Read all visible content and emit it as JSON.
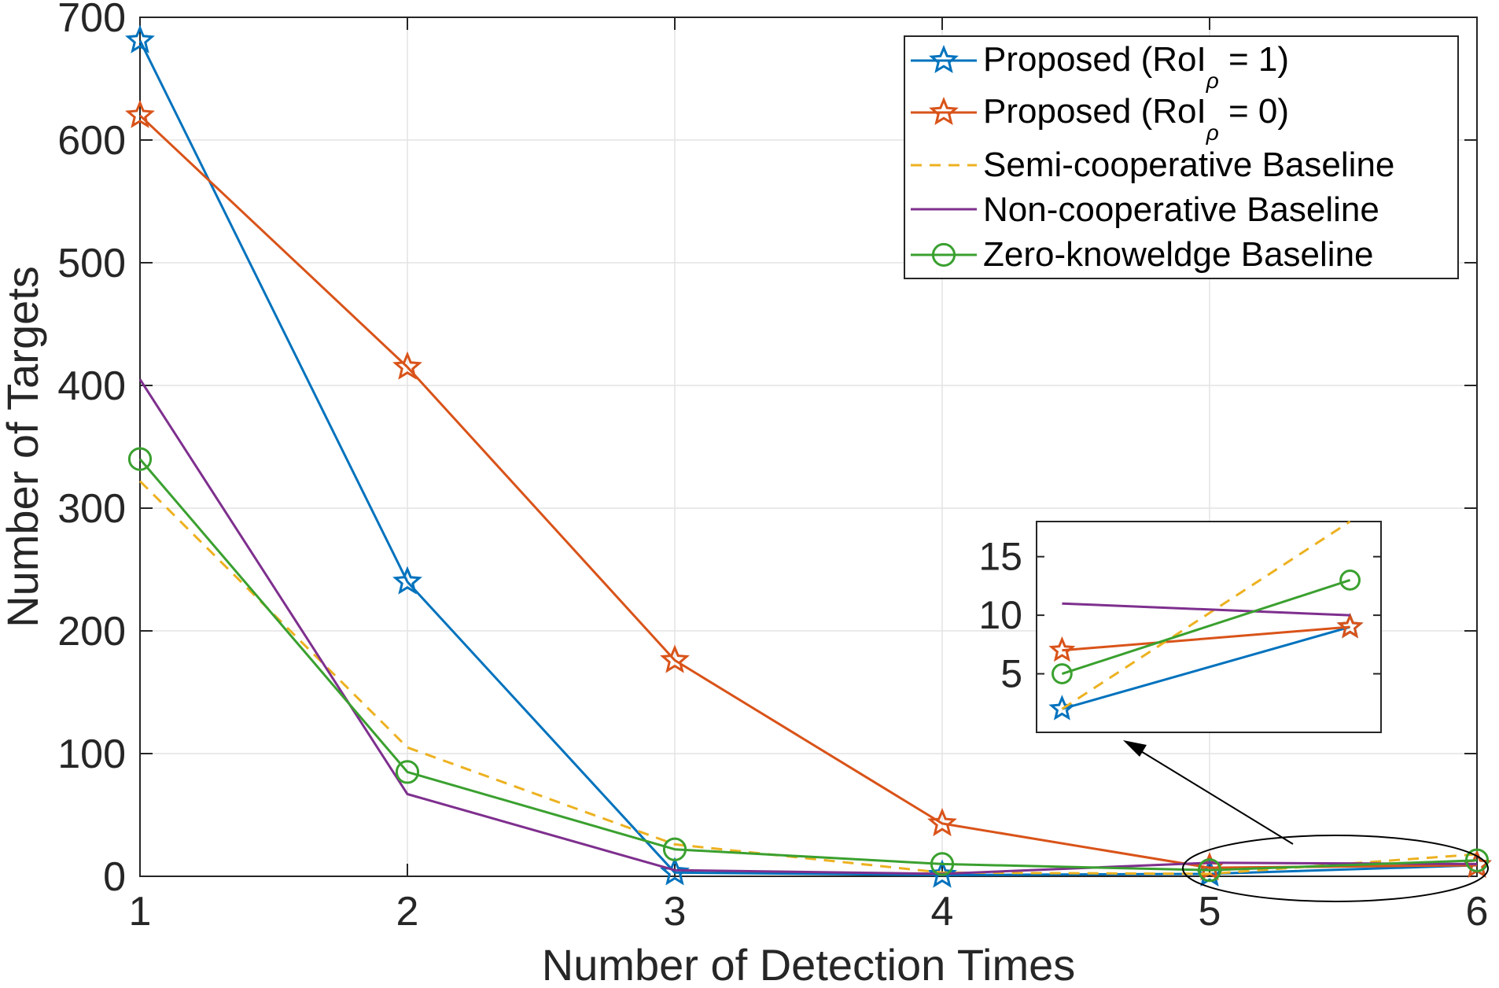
{
  "chart_data": {
    "type": "line",
    "title": "",
    "xlabel": "Number of Detection Times",
    "ylabel": "Number of Targets",
    "xlim": [
      1,
      6
    ],
    "ylim": [
      0,
      700
    ],
    "xticks": [
      "1",
      "2",
      "3",
      "4",
      "5",
      "6"
    ],
    "yticks": [
      "0",
      "100",
      "200",
      "300",
      "400",
      "500",
      "600",
      "700"
    ],
    "grid": true,
    "legend_position": "top-right",
    "x": [
      1,
      2,
      3,
      4,
      5,
      6
    ],
    "series": [
      {
        "name": "Proposed (RoI = 1)",
        "name_main": "Proposed (RoI",
        "name_sub": "ρ",
        "name_tail": " = 1)",
        "color": "#0072BD",
        "style": "solid",
        "marker": "star",
        "values": [
          681,
          240,
          3,
          1,
          2,
          9
        ]
      },
      {
        "name": "Proposed (RoI = 0)",
        "name_main": "Proposed (RoI",
        "name_sub": "ρ",
        "name_tail": " = 0)",
        "color": "#D95319",
        "style": "solid",
        "marker": "star",
        "values": [
          620,
          415,
          176,
          43,
          7,
          9
        ]
      },
      {
        "name": "Semi-cooperative Baseline",
        "color": "#EDB120",
        "style": "dashed",
        "marker": "none",
        "values": [
          322,
          105,
          26,
          3,
          2,
          18
        ]
      },
      {
        "name": "Non-cooperative Baseline",
        "color": "#7E2F8E",
        "style": "solid",
        "marker": "none",
        "values": [
          405,
          67,
          5,
          2,
          11,
          10
        ]
      },
      {
        "name": "Zero-knoweldge Baseline",
        "color": "#3AA02F",
        "style": "solid",
        "marker": "circle",
        "values": [
          340,
          85,
          22,
          10,
          5,
          13
        ]
      }
    ],
    "inset": {
      "x_range": [
        5,
        6
      ],
      "ylim": [
        0,
        18
      ],
      "yticks": [
        "5",
        "10",
        "15"
      ]
    }
  }
}
